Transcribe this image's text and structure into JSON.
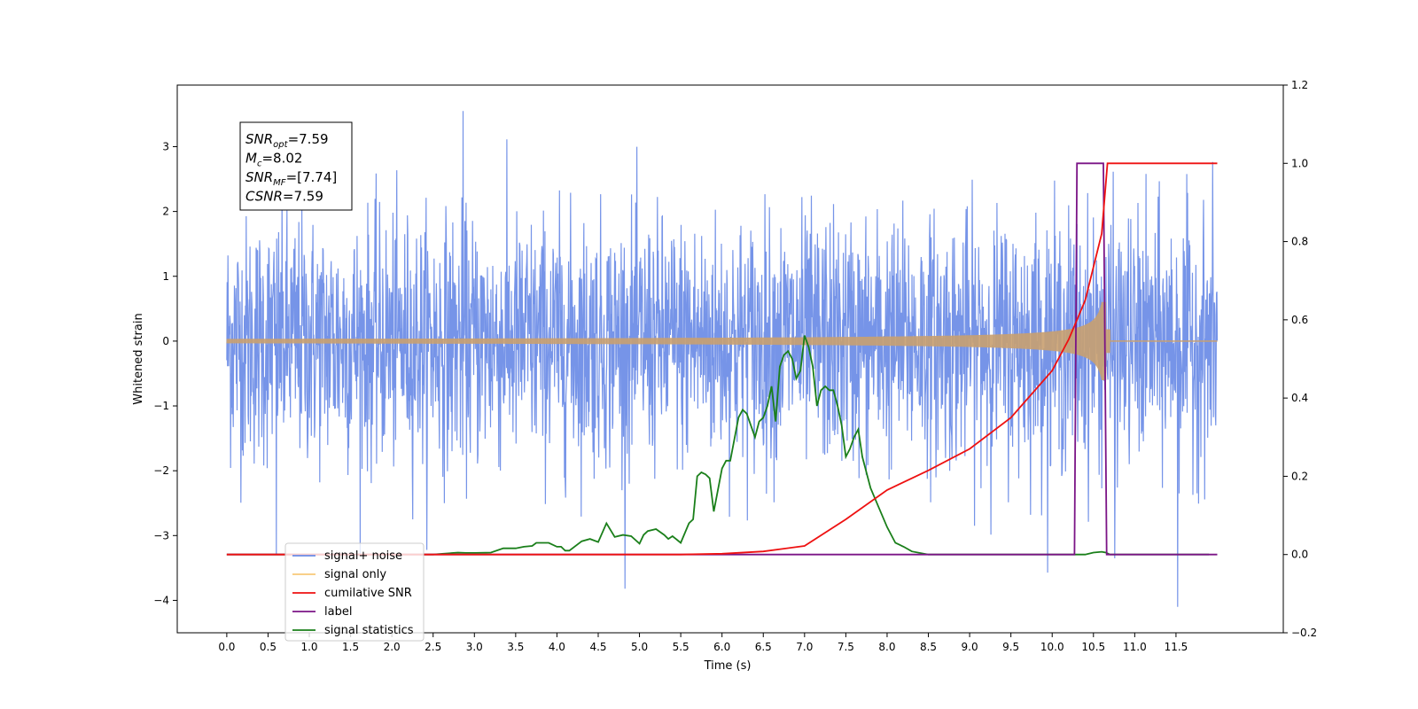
{
  "chart_data": {
    "type": "line",
    "xlabel": "Time (s)",
    "ylabel": "Whitened strain",
    "xlim": [
      -0.6,
      12.8
    ],
    "ylim": [
      -4.5,
      3.95
    ],
    "y2lim": [
      -0.2,
      1.2
    ],
    "x_ticks": [
      "0.0",
      "0.5",
      "1.0",
      "1.5",
      "2.0",
      "2.5",
      "3.0",
      "3.5",
      "4.0",
      "4.5",
      "5.0",
      "5.5",
      "6.0",
      "6.5",
      "7.0",
      "7.5",
      "8.0",
      "8.5",
      "9.0",
      "9.5",
      "10.0",
      "10.5",
      "11.0",
      "11.5"
    ],
    "y_ticks": [
      "−4",
      "−3",
      "−2",
      "−1",
      "0",
      "1",
      "2",
      "3"
    ],
    "y2_ticks": [
      "−0.2",
      "0.0",
      "0.2",
      "0.4",
      "0.6",
      "0.8",
      "1.0",
      "1.2"
    ],
    "annotation": {
      "lines": [
        {
          "sym": "SNR",
          "sub": "opt",
          "val": "=7.59"
        },
        {
          "sym": "M",
          "sub": "c",
          "val": "=8.02"
        },
        {
          "sym": "SNR",
          "sub": "MF",
          "val": "=[7.74]"
        },
        {
          "sym": "CSNR",
          "sub": "",
          "val": "=7.59"
        }
      ]
    },
    "legend": {
      "placement": "lower-left",
      "entries": [
        {
          "label": "signal+ noise",
          "color": "#6a8be6"
        },
        {
          "label": "signal only",
          "color": "#f8c878"
        },
        {
          "label": "cumilative SNR",
          "color": "#ee1111"
        },
        {
          "label": "label",
          "color": "#7b1486"
        },
        {
          "label": "signal statistics",
          "color": "#1a7f1a"
        }
      ]
    },
    "series": [
      {
        "name": "signal+ noise",
        "axis": "left",
        "color": "#6a8be6",
        "x_range": [
          0.0,
          12.0
        ],
        "spread": 0.95,
        "max": 3.55,
        "min": -4.1
      },
      {
        "name": "signal only",
        "axis": "left",
        "color": "#c9a070",
        "x_range": [
          0.0,
          12.0
        ],
        "chirp_end": 10.65,
        "peak_amplitude": 0.6
      },
      {
        "name": "cumilative SNR",
        "axis": "right",
        "x": [
          0.0,
          5.0,
          5.5,
          6.0,
          6.5,
          7.0,
          7.5,
          8.0,
          8.5,
          9.0,
          9.5,
          10.0,
          10.2,
          10.4,
          10.6,
          10.67,
          12.0
        ],
        "y": [
          0.0,
          0.0,
          0.0,
          0.002,
          0.008,
          0.022,
          0.09,
          0.165,
          0.215,
          0.27,
          0.35,
          0.47,
          0.55,
          0.65,
          0.82,
          1.0,
          1.0
        ]
      },
      {
        "name": "label",
        "axis": "right",
        "x": [
          0.0,
          10.27,
          10.3,
          10.62,
          10.66,
          12.0
        ],
        "y": [
          0.0,
          0.0,
          1.0,
          1.0,
          0.0,
          0.0
        ]
      },
      {
        "name": "signal statistics",
        "axis": "right",
        "x": [
          0.0,
          2.5,
          2.8,
          2.9,
          3.0,
          3.2,
          3.35,
          3.5,
          3.6,
          3.7,
          3.75,
          3.9,
          4.0,
          4.05,
          4.1,
          4.15,
          4.3,
          4.4,
          4.5,
          4.6,
          4.7,
          4.8,
          4.9,
          5.0,
          5.05,
          5.1,
          5.2,
          5.3,
          5.35,
          5.4,
          5.5,
          5.6,
          5.65,
          5.7,
          5.75,
          5.8,
          5.85,
          5.9,
          6.0,
          6.05,
          6.1,
          6.2,
          6.25,
          6.3,
          6.4,
          6.45,
          6.5,
          6.55,
          6.6,
          6.65,
          6.7,
          6.75,
          6.8,
          6.85,
          6.9,
          6.95,
          7.0,
          7.05,
          7.1,
          7.15,
          7.2,
          7.25,
          7.3,
          7.35,
          7.4,
          7.45,
          7.5,
          7.55,
          7.6,
          7.65,
          7.7,
          7.8,
          7.9,
          8.0,
          8.1,
          8.2,
          8.3,
          8.5,
          9.0,
          10.0,
          10.4,
          10.5,
          10.6,
          10.65,
          10.7,
          11.0,
          11.5,
          11.9
        ],
        "y": [
          0.0,
          0.0,
          0.005,
          0.004,
          0.004,
          0.005,
          0.016,
          0.016,
          0.02,
          0.022,
          0.03,
          0.03,
          0.02,
          0.02,
          0.01,
          0.01,
          0.034,
          0.04,
          0.032,
          0.08,
          0.045,
          0.05,
          0.047,
          0.028,
          0.05,
          0.06,
          0.065,
          0.05,
          0.04,
          0.047,
          0.03,
          0.08,
          0.09,
          0.2,
          0.21,
          0.205,
          0.195,
          0.11,
          0.22,
          0.24,
          0.24,
          0.35,
          0.37,
          0.36,
          0.3,
          0.34,
          0.35,
          0.38,
          0.43,
          0.34,
          0.48,
          0.51,
          0.52,
          0.5,
          0.45,
          0.47,
          0.56,
          0.53,
          0.48,
          0.38,
          0.42,
          0.43,
          0.42,
          0.42,
          0.38,
          0.33,
          0.25,
          0.27,
          0.3,
          0.32,
          0.25,
          0.17,
          0.12,
          0.07,
          0.03,
          0.02,
          0.008,
          0.0,
          0.0,
          0.0,
          0.0,
          0.005,
          0.007,
          0.005,
          0.0,
          0.0,
          0.0,
          0.0
        ]
      }
    ]
  }
}
